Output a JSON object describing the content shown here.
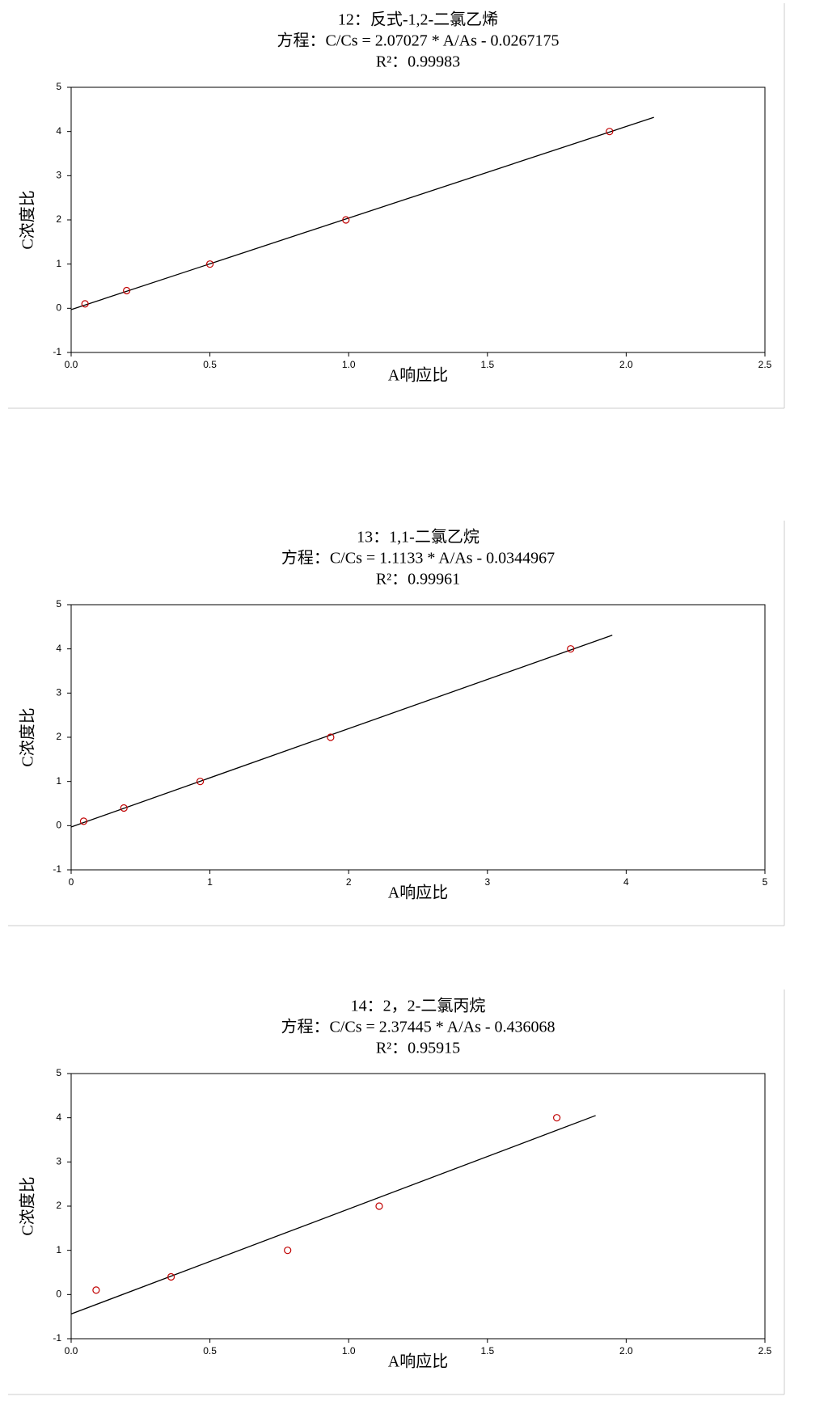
{
  "chart_data": [
    {
      "type": "scatter",
      "title": "12：反式-1,2-二氯乙烯",
      "equation": "方程：C/Cs =  2.07027 * A/As - 0.0267175",
      "r2": "R²：0.99983",
      "x_label": "A响应比",
      "y_label": "C浓度比",
      "points": {
        "x": [
          0.05,
          0.2,
          0.5,
          0.99,
          1.94
        ],
        "y": [
          0.1,
          0.4,
          1,
          2,
          4
        ],
        "color": "#c00000"
      },
      "fit": {
        "x": [
          0,
          2.1
        ],
        "y": [
          -0.03,
          4.32
        ],
        "color": "#000000"
      },
      "xlim": [
        0,
        2.5
      ],
      "ylim": [
        -1,
        5
      ],
      "xticks": [
        {
          "value": 0,
          "label": "0.0"
        },
        {
          "value": 0.5,
          "label": "0.5"
        },
        {
          "value": 1,
          "label": "1.0"
        },
        {
          "value": 1.5,
          "label": "1.5"
        },
        {
          "value": 2,
          "label": "2.0"
        },
        {
          "value": 2.5,
          "label": "2.5"
        }
      ],
      "yticks": [
        -1,
        0,
        1,
        2,
        3,
        4,
        5
      ]
    },
    {
      "type": "scatter",
      "title": "13：1,1-二氯乙烷",
      "equation": "方程：C/Cs =  1.1133 * A/As - 0.0344967",
      "r2": "R²：0.99961",
      "x_label": "A响应比",
      "y_label": "C浓度比",
      "points": {
        "x": [
          0.09,
          0.38,
          0.93,
          1.87,
          3.6
        ],
        "y": [
          0.1,
          0.4,
          1,
          2,
          4
        ],
        "color": "#c00000"
      },
      "fit": {
        "x": [
          0,
          3.9
        ],
        "y": [
          -0.03,
          4.31
        ],
        "color": "#000000"
      },
      "xlim": [
        0,
        5
      ],
      "ylim": [
        -1,
        5
      ],
      "xticks": [
        0,
        1,
        2,
        3,
        4,
        5
      ],
      "yticks": [
        -1,
        0,
        1,
        2,
        3,
        4,
        5
      ]
    },
    {
      "type": "scatter",
      "title": "14：2，2-二氯丙烷",
      "equation": "方程：C/Cs =  2.37445 * A/As - 0.436068",
      "r2": "R²：0.95915",
      "x_label": "A响应比",
      "y_label": "C浓度比",
      "points": {
        "x": [
          0.09,
          0.36,
          0.78,
          1.11,
          1.75
        ],
        "y": [
          0.1,
          0.4,
          1,
          2,
          4
        ],
        "color": "#c00000"
      },
      "fit": {
        "x": [
          0,
          1.89
        ],
        "y": [
          -0.44,
          4.05
        ],
        "color": "#000000"
      },
      "xlim": [
        0,
        2.5
      ],
      "ylim": [
        -1,
        5
      ],
      "xticks": [
        {
          "value": 0,
          "label": "0.0"
        },
        {
          "value": 0.5,
          "label": "0.5"
        },
        {
          "value": 1,
          "label": "1.0"
        },
        {
          "value": 1.5,
          "label": "1.5"
        },
        {
          "value": 2,
          "label": "2.0"
        },
        {
          "value": 2.5,
          "label": "2.5"
        }
      ],
      "yticks": [
        -1,
        0,
        1,
        2,
        3,
        4,
        5
      ]
    }
  ]
}
